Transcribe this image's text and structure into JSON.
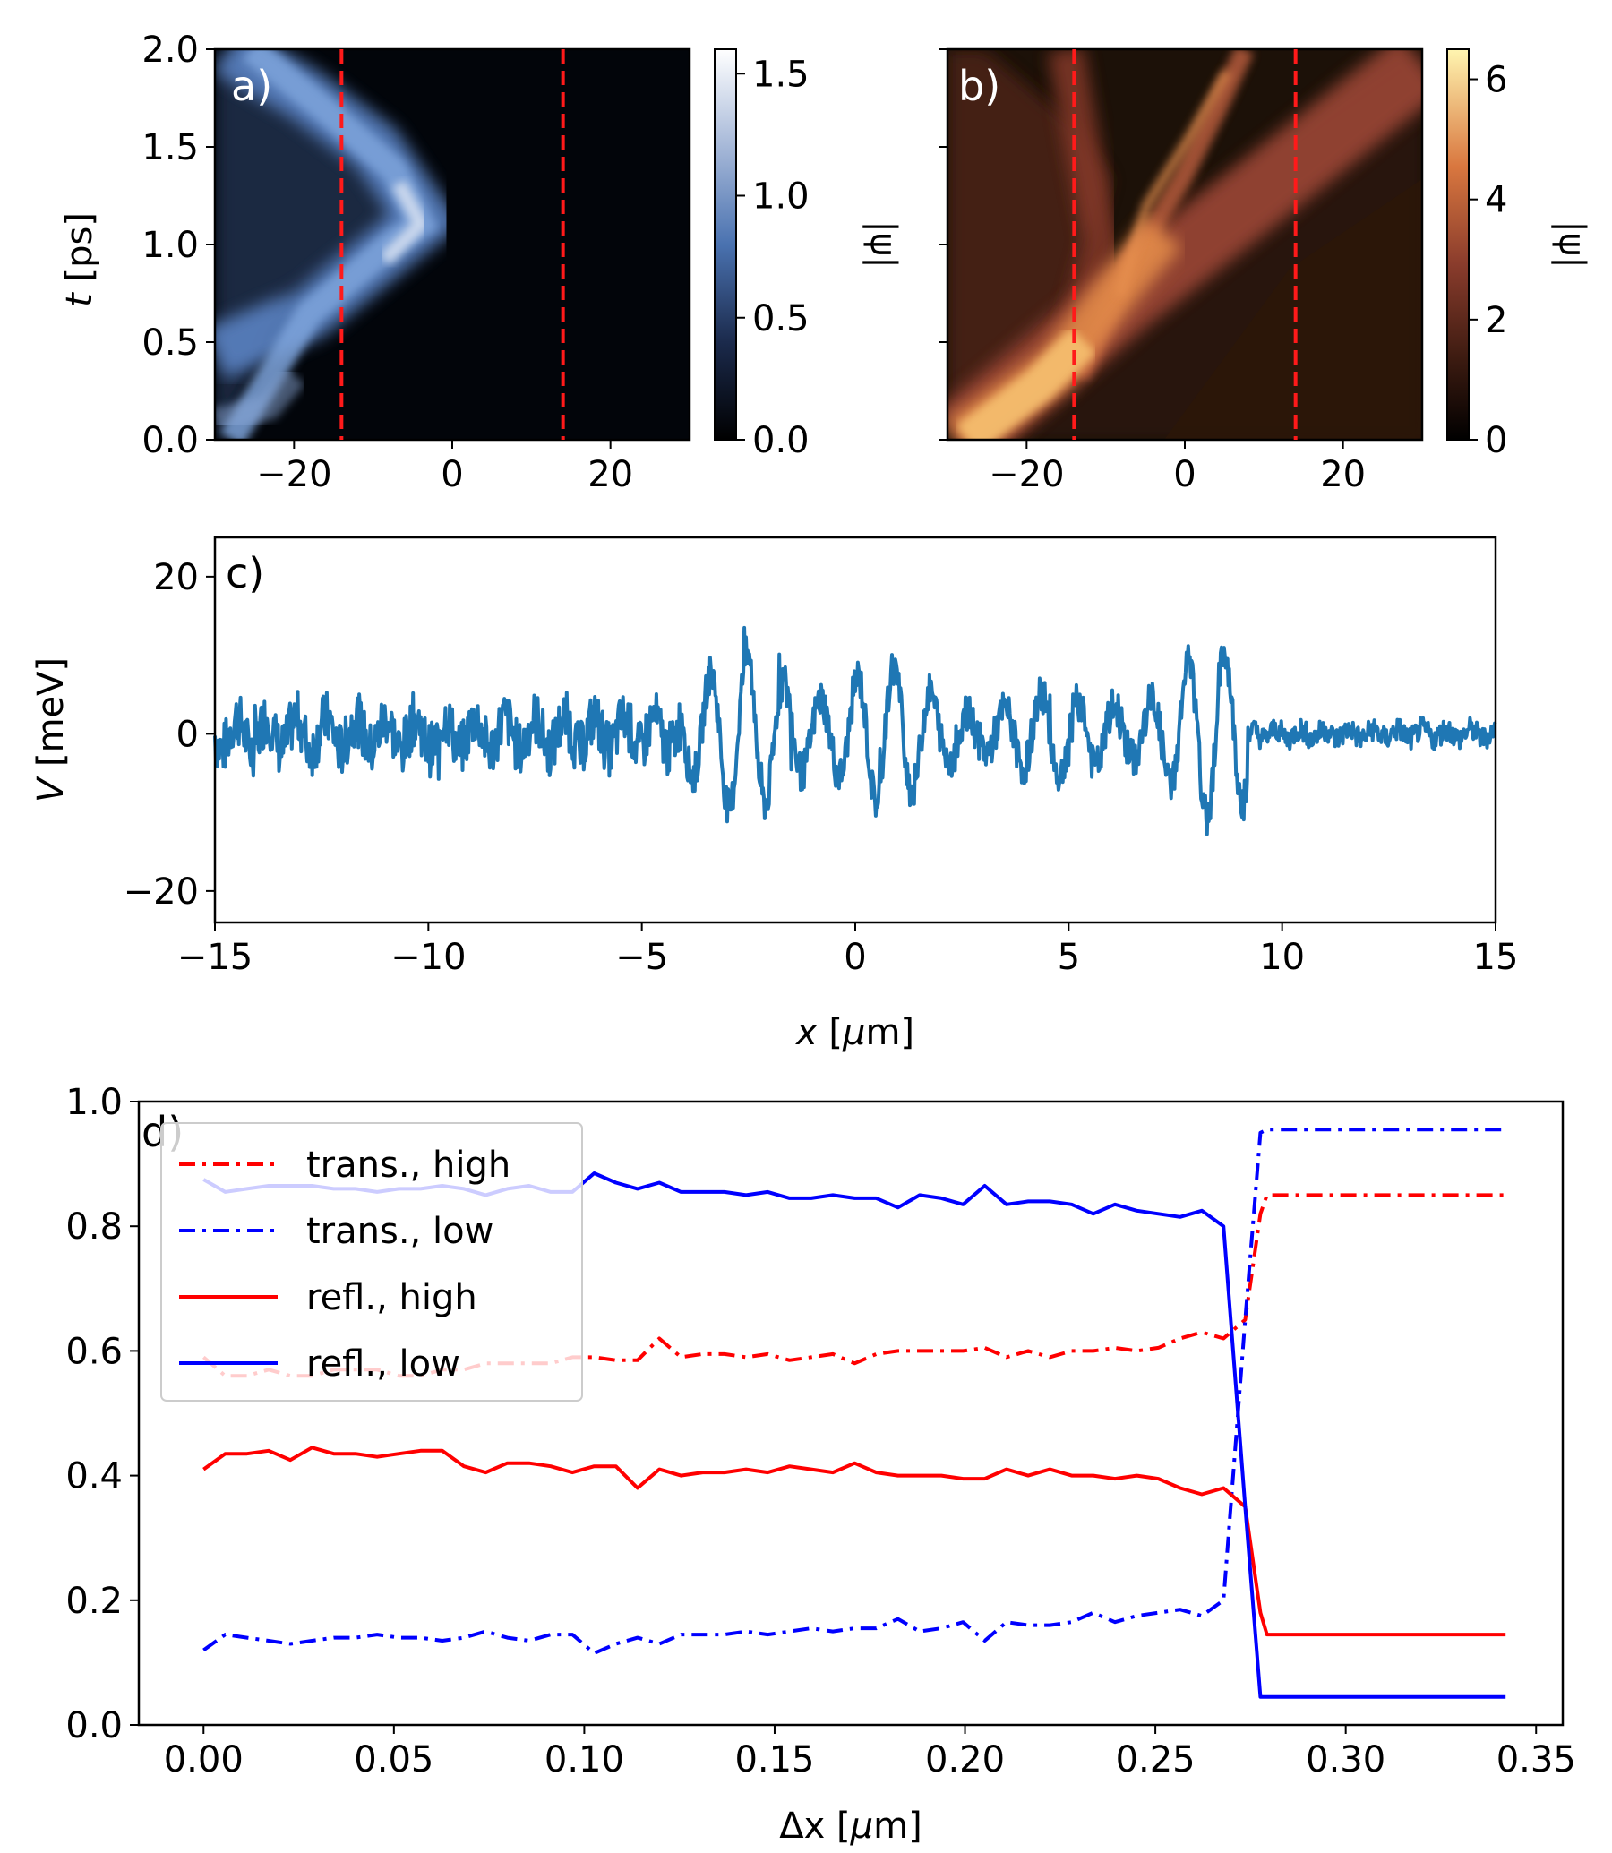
{
  "chart_data": [
    {
      "panel": "a)",
      "type": "heatmap",
      "xlim": [
        -30,
        30
      ],
      "ylim": [
        0,
        2.0
      ],
      "xticks": [
        "−20",
        "0",
        "20"
      ],
      "yticks": [
        "0.0",
        "0.5",
        "1.0",
        "1.5",
        "2.0"
      ],
      "ylabel": "t [ps]",
      "colorbar": {
        "label": "|ψ|",
        "range": [
          0,
          1.6
        ],
        "ticks": [
          "0.0",
          "0.5",
          "1.0",
          "1.5"
        ],
        "colormap": "blue-white"
      },
      "dashed_lines_x": [
        -14,
        14
      ],
      "dashed_color": "#ff1a1a"
    },
    {
      "panel": "b)",
      "type": "heatmap",
      "xlim": [
        -30,
        30
      ],
      "ylim": [
        0,
        2.0
      ],
      "xticks": [
        "−20",
        "0",
        "20"
      ],
      "colorbar": {
        "label": "|ψ|",
        "range": [
          0,
          6.5
        ],
        "ticks": [
          "0",
          "2",
          "4",
          "6"
        ],
        "colormap": "afmhot"
      },
      "dashed_lines_x": [
        -14,
        14
      ],
      "dashed_color": "#ff1a1a"
    },
    {
      "panel": "c)",
      "type": "line",
      "xlim": [
        -15,
        15
      ],
      "ylim": [
        -24,
        25
      ],
      "xticks": [
        "−15",
        "−10",
        "−5",
        "0",
        "5",
        "10",
        "15"
      ],
      "yticks": [
        "−20",
        "0",
        "20"
      ],
      "xlabel": "x [μm]",
      "ylabel": "V [meV]",
      "color": "#1f77b4",
      "series_description": "random disorder potential: amplitude ~±3 meV for x<-4 and x>9, oscillations up to ±13 meV between x=-4 and x=9"
    },
    {
      "panel": "d)",
      "type": "line",
      "xlim": [
        -0.017,
        0.357
      ],
      "ylim": [
        0.0,
        1.0
      ],
      "xticks": [
        "0.00",
        "0.05",
        "0.10",
        "0.15",
        "0.20",
        "0.25",
        "0.30",
        "0.35"
      ],
      "yticks": [
        "0.0",
        "0.2",
        "0.4",
        "0.6",
        "0.8",
        "1.0"
      ],
      "xlabel": "Δx [μm]",
      "x": [
        0,
        0.0057,
        0.0114,
        0.0171,
        0.0228,
        0.0285,
        0.0342,
        0.0399,
        0.0456,
        0.0513,
        0.057,
        0.0627,
        0.0684,
        0.0741,
        0.0798,
        0.0855,
        0.0912,
        0.0969,
        0.1026,
        0.1083,
        0.114,
        0.1197,
        0.1254,
        0.1311,
        0.1368,
        0.1425,
        0.1482,
        0.1539,
        0.1596,
        0.1653,
        0.171,
        0.1767,
        0.1824,
        0.1881,
        0.1938,
        0.1995,
        0.2052,
        0.2109,
        0.2166,
        0.2223,
        0.228,
        0.2337,
        0.2394,
        0.2451,
        0.2508,
        0.2565,
        0.2622,
        0.2679,
        0.2736,
        0.2776,
        0.2793,
        0.285,
        0.2907,
        0.2964,
        0.3021,
        0.3078,
        0.3135,
        0.3192,
        0.3249,
        0.3306,
        0.3363,
        0.342
      ],
      "series": [
        {
          "name": "trans., high",
          "dash": "dashdot",
          "color": "#ff0000",
          "values": [
            0.59,
            0.56,
            0.56,
            0.57,
            0.56,
            0.56,
            0.57,
            0.57,
            0.57,
            0.56,
            0.56,
            0.57,
            0.57,
            0.58,
            0.58,
            0.58,
            0.58,
            0.59,
            0.59,
            0.585,
            0.585,
            0.62,
            0.59,
            0.595,
            0.595,
            0.59,
            0.595,
            0.585,
            0.59,
            0.595,
            0.58,
            0.595,
            0.6,
            0.6,
            0.6,
            0.6,
            0.605,
            0.59,
            0.6,
            0.59,
            0.6,
            0.6,
            0.605,
            0.6,
            0.605,
            0.62,
            0.63,
            0.62,
            0.65,
            0.82,
            0.85,
            0.85,
            0.85,
            0.85,
            0.85,
            0.85,
            0.85,
            0.85,
            0.85,
            0.85,
            0.85,
            0.85
          ]
        },
        {
          "name": "trans., low",
          "dash": "dashdot",
          "color": "#0000ff",
          "values": [
            0.12,
            0.145,
            0.14,
            0.135,
            0.13,
            0.135,
            0.14,
            0.14,
            0.145,
            0.14,
            0.14,
            0.135,
            0.14,
            0.15,
            0.14,
            0.135,
            0.145,
            0.145,
            0.115,
            0.13,
            0.14,
            0.13,
            0.145,
            0.145,
            0.145,
            0.15,
            0.145,
            0.15,
            0.155,
            0.15,
            0.155,
            0.155,
            0.17,
            0.15,
            0.155,
            0.165,
            0.135,
            0.165,
            0.16,
            0.16,
            0.165,
            0.18,
            0.165,
            0.175,
            0.18,
            0.185,
            0.175,
            0.2,
            0.65,
            0.95,
            0.955,
            0.955,
            0.955,
            0.955,
            0.955,
            0.955,
            0.955,
            0.955,
            0.955,
            0.955,
            0.955,
            0.955
          ]
        },
        {
          "name": "refl., high",
          "dash": "solid",
          "color": "#ff0000",
          "values": [
            0.41,
            0.435,
            0.435,
            0.44,
            0.425,
            0.445,
            0.435,
            0.435,
            0.43,
            0.435,
            0.44,
            0.44,
            0.415,
            0.405,
            0.42,
            0.42,
            0.415,
            0.405,
            0.415,
            0.415,
            0.38,
            0.41,
            0.4,
            0.405,
            0.405,
            0.41,
            0.405,
            0.415,
            0.41,
            0.405,
            0.42,
            0.405,
            0.4,
            0.4,
            0.4,
            0.395,
            0.395,
            0.41,
            0.4,
            0.41,
            0.4,
            0.4,
            0.395,
            0.4,
            0.395,
            0.38,
            0.37,
            0.38,
            0.35,
            0.18,
            0.145,
            0.145,
            0.145,
            0.145,
            0.145,
            0.145,
            0.145,
            0.145,
            0.145,
            0.145,
            0.145,
            0.145
          ]
        },
        {
          "name": "refl., low",
          "dash": "solid",
          "color": "#0000ff",
          "values": [
            0.875,
            0.855,
            0.86,
            0.865,
            0.865,
            0.865,
            0.86,
            0.86,
            0.855,
            0.86,
            0.86,
            0.865,
            0.86,
            0.85,
            0.86,
            0.865,
            0.855,
            0.855,
            0.885,
            0.87,
            0.86,
            0.87,
            0.855,
            0.855,
            0.855,
            0.85,
            0.855,
            0.845,
            0.845,
            0.85,
            0.845,
            0.845,
            0.83,
            0.85,
            0.845,
            0.835,
            0.865,
            0.835,
            0.84,
            0.84,
            0.835,
            0.82,
            0.835,
            0.825,
            0.82,
            0.815,
            0.825,
            0.8,
            0.35,
            0.045,
            0.045,
            0.045,
            0.045,
            0.045,
            0.045,
            0.045,
            0.045,
            0.045,
            0.045,
            0.045,
            0.045,
            0.045
          ]
        }
      ],
      "legend_location": "upper-left"
    }
  ]
}
